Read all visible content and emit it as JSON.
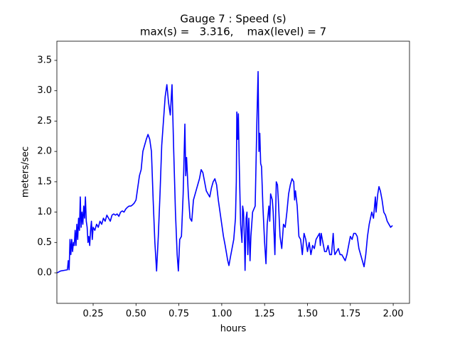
{
  "chart_data": {
    "type": "line",
    "title": "Gauge 7 : Speed (s)",
    "subtitle": "max(s) =   3.316,    max(level) = 7",
    "xlabel": "hours",
    "ylabel": "meters/sec",
    "xlim": [
      0.0385,
      2.095
    ],
    "ylim": [
      -0.503,
      3.816
    ],
    "xticks": [
      0.25,
      {
        "value": 0.5,
        "label": "0.50"
      },
      0.75,
      {
        "value": 1.0,
        "label": "1.00"
      },
      1.25,
      {
        "value": 1.5,
        "label": "1.50"
      },
      1.75,
      {
        "value": 2.0,
        "label": "2.00"
      }
    ],
    "yticks": [
      {
        "value": 0,
        "label": "0.0"
      },
      0.5,
      {
        "value": 1,
        "label": "1.0"
      },
      1.5,
      {
        "value": 2,
        "label": "2.0"
      },
      2.5,
      {
        "value": 3,
        "label": "3.0"
      },
      3.5
    ],
    "grid": false,
    "x": [
      0.04,
      0.06,
      0.08,
      0.1,
      0.105,
      0.11,
      0.115,
      0.12,
      0.125,
      0.13,
      0.135,
      0.14,
      0.145,
      0.15,
      0.155,
      0.16,
      0.165,
      0.17,
      0.175,
      0.18,
      0.185,
      0.19,
      0.195,
      0.2,
      0.205,
      0.21,
      0.215,
      0.22,
      0.225,
      0.23,
      0.235,
      0.24,
      0.245,
      0.25,
      0.26,
      0.27,
      0.28,
      0.29,
      0.3,
      0.31,
      0.32,
      0.33,
      0.34,
      0.35,
      0.36,
      0.37,
      0.38,
      0.39,
      0.4,
      0.41,
      0.42,
      0.43,
      0.44,
      0.45,
      0.46,
      0.47,
      0.48,
      0.49,
      0.5,
      0.51,
      0.52,
      0.53,
      0.54,
      0.55,
      0.56,
      0.57,
      0.58,
      0.59,
      0.595,
      0.6,
      0.61,
      0.62,
      0.63,
      0.64,
      0.65,
      0.66,
      0.67,
      0.68,
      0.69,
      0.7,
      0.71,
      0.72,
      0.73,
      0.74,
      0.747,
      0.755,
      0.765,
      0.775,
      0.785,
      0.79,
      0.795,
      0.805,
      0.815,
      0.825,
      0.835,
      0.85,
      0.86,
      0.87,
      0.88,
      0.89,
      0.9,
      0.91,
      0.92,
      0.93,
      0.94,
      0.95,
      0.96,
      0.97,
      0.98,
      0.99,
      1.0,
      1.01,
      1.02,
      1.035,
      1.042,
      1.05,
      1.06,
      1.07,
      1.08,
      1.085,
      1.088,
      1.093,
      1.097,
      1.102,
      1.11,
      1.118,
      1.122,
      1.127,
      1.132,
      1.136,
      1.142,
      1.147,
      1.152,
      1.158,
      1.165,
      1.17,
      1.18,
      1.195,
      1.205,
      1.212,
      1.217,
      1.222,
      1.227,
      1.232,
      1.24,
      1.25,
      1.258,
      1.265,
      1.275,
      1.28,
      1.285,
      1.295,
      1.3,
      1.305,
      1.31,
      1.318,
      1.325,
      1.33,
      1.34,
      1.35,
      1.36,
      1.37,
      1.38,
      1.39,
      1.4,
      1.41,
      1.42,
      1.425,
      1.43,
      1.44,
      1.45,
      1.46,
      1.47,
      1.48,
      1.49,
      1.5,
      1.51,
      1.52,
      1.53,
      1.54,
      1.55,
      1.56,
      1.57,
      1.575,
      1.58,
      1.59,
      1.6,
      1.61,
      1.62,
      1.63,
      1.64,
      1.65,
      1.655,
      1.66,
      1.67,
      1.68,
      1.69,
      1.7,
      1.71,
      1.72,
      1.73,
      1.74,
      1.75,
      1.76,
      1.77,
      1.78,
      1.79,
      1.8,
      1.81,
      1.82,
      1.83,
      1.84,
      1.85,
      1.86,
      1.875,
      1.885,
      1.896,
      1.9,
      1.91,
      1.917,
      1.925,
      1.935,
      1.945,
      1.955,
      1.965,
      1.975,
      1.985,
      1.996
    ],
    "series": [
      {
        "name": "s",
        "color": "#0000ff",
        "values": [
          0.0,
          0.03,
          0.04,
          0.05,
          0.2,
          0.05,
          0.55,
          0.3,
          0.55,
          0.35,
          0.5,
          0.45,
          0.7,
          0.45,
          0.8,
          0.55,
          0.9,
          0.7,
          1.25,
          0.75,
          1.0,
          0.8,
          1.1,
          0.9,
          1.25,
          0.85,
          0.75,
          0.5,
          0.6,
          0.45,
          0.7,
          0.85,
          0.55,
          0.75,
          0.7,
          0.8,
          0.75,
          0.85,
          0.8,
          0.9,
          0.85,
          0.95,
          0.9,
          0.85,
          0.95,
          0.97,
          0.95,
          0.97,
          0.93,
          1.0,
          1.02,
          1.0,
          1.05,
          1.08,
          1.1,
          1.1,
          1.12,
          1.15,
          1.2,
          1.4,
          1.6,
          1.7,
          2.0,
          2.1,
          2.2,
          2.28,
          2.2,
          2.0,
          1.6,
          1.2,
          0.5,
          0.03,
          0.6,
          1.3,
          2.1,
          2.5,
          2.9,
          3.1,
          2.8,
          2.6,
          3.1,
          2.0,
          1.0,
          0.3,
          0.03,
          0.55,
          0.6,
          1.3,
          2.45,
          1.6,
          1.9,
          1.3,
          0.9,
          0.85,
          1.2,
          1.35,
          1.45,
          1.55,
          1.7,
          1.65,
          1.5,
          1.35,
          1.3,
          1.25,
          1.4,
          1.5,
          1.55,
          1.45,
          1.2,
          1.0,
          0.8,
          0.6,
          0.45,
          0.2,
          0.12,
          0.25,
          0.4,
          0.55,
          0.9,
          1.5,
          2.65,
          2.2,
          2.62,
          1.8,
          0.8,
          0.5,
          1.1,
          1.0,
          0.6,
          0.04,
          0.9,
          1.0,
          0.3,
          0.9,
          0.2,
          0.6,
          1.0,
          1.1,
          2.5,
          3.316,
          2.0,
          2.3,
          1.8,
          1.75,
          1.1,
          0.5,
          0.15,
          0.8,
          1.1,
          0.85,
          1.3,
          1.2,
          1.0,
          0.65,
          0.3,
          1.5,
          1.45,
          1.2,
          0.6,
          0.4,
          0.8,
          0.75,
          1.0,
          1.3,
          1.45,
          1.55,
          1.5,
          1.2,
          1.35,
          1.1,
          0.6,
          0.55,
          0.3,
          0.65,
          0.55,
          0.35,
          0.5,
          0.3,
          0.45,
          0.4,
          0.55,
          0.6,
          0.65,
          0.45,
          0.65,
          0.5,
          0.35,
          0.35,
          0.45,
          0.3,
          0.3,
          0.65,
          0.4,
          0.3,
          0.35,
          0.4,
          0.3,
          0.3,
          0.25,
          0.2,
          0.3,
          0.45,
          0.6,
          0.55,
          0.65,
          0.65,
          0.6,
          0.4,
          0.3,
          0.2,
          0.1,
          0.3,
          0.6,
          0.8,
          1.0,
          0.9,
          1.25,
          1.0,
          1.3,
          1.42,
          1.35,
          1.2,
          1.0,
          0.95,
          0.85,
          0.8,
          0.75,
          0.78
        ]
      }
    ]
  }
}
